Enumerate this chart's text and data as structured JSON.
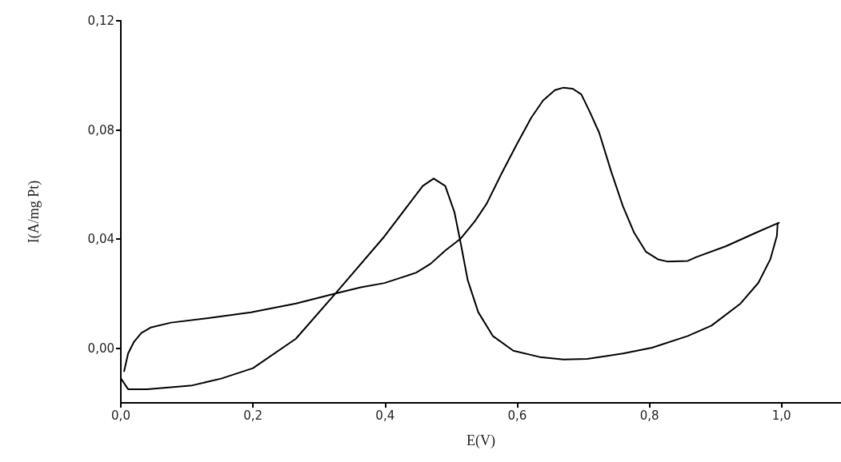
{
  "chart_data": {
    "type": "line",
    "xlabel": "E(V)",
    "ylabel": "I(A/mg Pt)",
    "xlim": [
      0,
      1.09
    ],
    "ylim": [
      -0.02,
      0.12
    ],
    "xticks": [
      {
        "value": 0,
        "label": "0,0"
      },
      {
        "value": 0.2,
        "label": "0,2"
      },
      {
        "value": 0.4,
        "label": "0,4"
      },
      {
        "value": 0.6,
        "label": "0,6"
      },
      {
        "value": 0.8,
        "label": "0,8"
      },
      {
        "value": 1.0,
        "label": "1,0"
      }
    ],
    "yticks": [
      {
        "value": 0,
        "label": "0,00"
      },
      {
        "value": 0.04,
        "label": "0,04"
      },
      {
        "value": 0.08,
        "label": "0,08"
      },
      {
        "value": 0.12,
        "label": "0,12"
      }
    ],
    "grid": false,
    "marker": "none",
    "line_style": "solid",
    "series": [
      {
        "color": "#000000",
        "x": [
          0,
          0.011,
          0.04,
          0.108,
          0.152,
          0.2,
          0.265,
          0.327,
          0.399,
          0.457,
          0.4735,
          0.491,
          0.505,
          0.514,
          0.525,
          0.541,
          0.563,
          0.594,
          0.634,
          0.67,
          0.706,
          0.76,
          0.804,
          0.858,
          0.894,
          0.938,
          0.965,
          0.983,
          0.993,
          0.994,
          0.996,
          0.961,
          0.916,
          0.871,
          0.858,
          0.827,
          0.813,
          0.795,
          0.777,
          0.76,
          0.742,
          0.724,
          0.71,
          0.697,
          0.684,
          0.67,
          0.657,
          0.639,
          0.621,
          0.599,
          0.576,
          0.554,
          0.536,
          0.514,
          0.491,
          0.469,
          0.447,
          0.399,
          0.363,
          0.327,
          0.265,
          0.197,
          0.13,
          0.076,
          0.045,
          0.031,
          0.02,
          0.011,
          0.005
        ],
        "values": [
          -0.011,
          -0.015,
          -0.015,
          -0.0136,
          -0.0111,
          -0.0073,
          0.0035,
          0.0207,
          0.041,
          0.0595,
          0.0622,
          0.0595,
          0.0498,
          0.039,
          0.025,
          0.0132,
          0.0045,
          -0.0009,
          -0.0032,
          -0.0041,
          -0.0039,
          -0.0019,
          0.0002,
          0.0045,
          0.0083,
          0.0164,
          0.024,
          0.0326,
          0.0412,
          0.0455,
          0.046,
          0.0423,
          0.0374,
          0.0334,
          0.032,
          0.0318,
          0.0326,
          0.0353,
          0.0423,
          0.052,
          0.0649,
          0.079,
          0.0865,
          0.093,
          0.0951,
          0.0955,
          0.0946,
          0.0908,
          0.0844,
          0.0746,
          0.0639,
          0.0531,
          0.0466,
          0.0401,
          0.0358,
          0.031,
          0.0277,
          0.0239,
          0.0223,
          0.0202,
          0.0164,
          0.0132,
          0.011,
          0.0094,
          0.0076,
          0.0056,
          0.0024,
          -0.0019,
          -0.0084
        ]
      }
    ]
  }
}
